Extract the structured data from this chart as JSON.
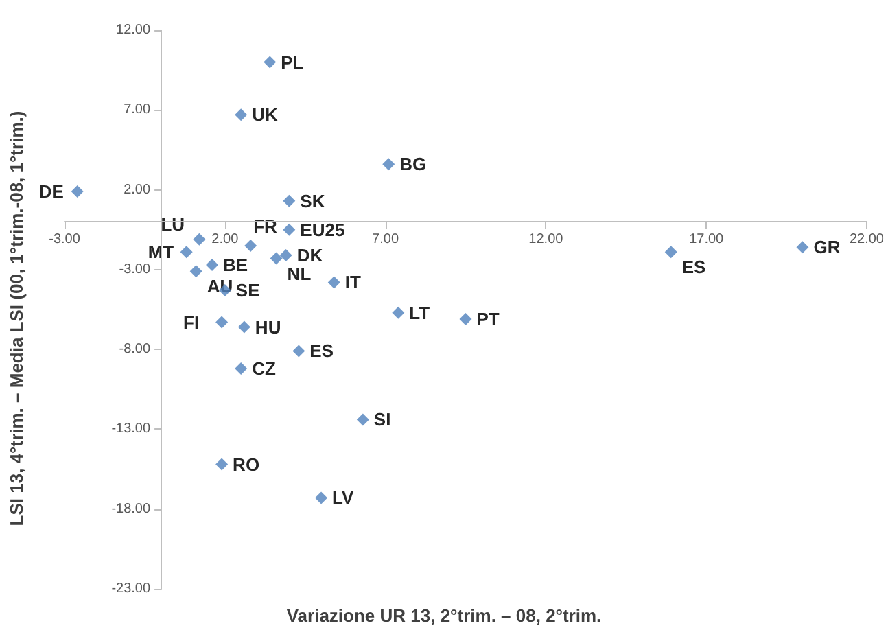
{
  "chart_data": {
    "type": "scatter",
    "xlabel": "Variazione UR 13, 2°trim. – 08, 2°trim.",
    "ylabel": "LSI 13, 4°trim. – Media LSI (00, 1°trim.-08, 1°trim.)",
    "x": [
      3.4,
      2.5,
      7.1,
      -2.6,
      4.0,
      4.0,
      1.2,
      2.8,
      0.8,
      3.9,
      3.6,
      1.6,
      1.1,
      2.0,
      5.4,
      1.9,
      2.6,
      4.3,
      2.5,
      6.3,
      1.9,
      5.0,
      7.4,
      9.5,
      15.9,
      20.0
    ],
    "series": [
      {
        "color": "#4f81bd",
        "values": [
          10.0,
          6.7,
          3.6,
          1.9,
          1.3,
          -0.5,
          -1.1,
          -1.5,
          -1.9,
          -2.1,
          -2.3,
          -2.7,
          -3.1,
          -4.3,
          -3.8,
          -6.3,
          -6.6,
          -8.1,
          -9.2,
          -12.4,
          -15.2,
          -17.3,
          -5.7,
          -6.1,
          -1.9,
          -1.6
        ]
      }
    ],
    "annotations": [
      {
        "text": "PL",
        "x": 3.4,
        "y": 10.0
      },
      {
        "text": "UK",
        "x": 2.5,
        "y": 6.7
      },
      {
        "text": "BG",
        "x": 7.1,
        "y": 3.6
      },
      {
        "text": "DE",
        "x": -2.6,
        "y": 1.9
      },
      {
        "text": "SK",
        "x": 4.0,
        "y": 1.3
      },
      {
        "text": "EU25",
        "x": 4.0,
        "y": -0.5
      },
      {
        "text": "LU",
        "x": 1.2,
        "y": -1.1
      },
      {
        "text": "FR",
        "x": 2.8,
        "y": -1.5
      },
      {
        "text": "MT",
        "x": 0.8,
        "y": -1.9
      },
      {
        "text": "DK",
        "x": 3.9,
        "y": -2.1
      },
      {
        "text": "NL",
        "x": 3.6,
        "y": -2.3
      },
      {
        "text": "BE",
        "x": 1.6,
        "y": -2.7
      },
      {
        "text": "AU",
        "x": 1.1,
        "y": -3.1
      },
      {
        "text": "SE",
        "x": 2.0,
        "y": -4.3
      },
      {
        "text": "IT",
        "x": 5.4,
        "y": -3.8
      },
      {
        "text": "FI",
        "x": 1.9,
        "y": -6.3
      },
      {
        "text": "HU",
        "x": 2.6,
        "y": -6.6
      },
      {
        "text": "ES",
        "x": 4.3,
        "y": -8.1
      },
      {
        "text": "CZ",
        "x": 2.5,
        "y": -9.2
      },
      {
        "text": "SI",
        "x": 6.3,
        "y": -12.4
      },
      {
        "text": "RO",
        "x": 1.9,
        "y": -15.2
      },
      {
        "text": "LV",
        "x": 5.0,
        "y": -17.3
      },
      {
        "text": "LT",
        "x": 7.4,
        "y": -5.7
      },
      {
        "text": "PT",
        "x": 9.5,
        "y": -6.1
      },
      {
        "text": "ES",
        "x": 15.9,
        "y": -1.9
      },
      {
        "text": "GR",
        "x": 20.0,
        "y": -1.6
      }
    ],
    "xlim": [
      -3,
      22
    ],
    "xticks": [
      {
        "value": -3,
        "label": "-3.00"
      },
      {
        "value": 2,
        "label": "2.00"
      },
      {
        "value": 7,
        "label": "7.00"
      },
      {
        "value": 12,
        "label": "12.00"
      },
      {
        "value": 17,
        "label": "17.00"
      },
      {
        "value": 22,
        "label": "22.00"
      }
    ],
    "ylim": [
      -23,
      12
    ],
    "yticks": [
      {
        "value": -23,
        "label": "-23.00"
      },
      {
        "value": -18,
        "label": "-18.00"
      },
      {
        "value": -13,
        "label": "-13.00"
      },
      {
        "value": -8,
        "label": "-8.00"
      },
      {
        "value": -3,
        "label": "-3.00"
      },
      {
        "value": 2,
        "label": "2.00"
      },
      {
        "value": 7,
        "label": "7.00"
      },
      {
        "value": 12,
        "label": "12.00"
      }
    ],
    "grid": false,
    "marker": "diamond"
  }
}
